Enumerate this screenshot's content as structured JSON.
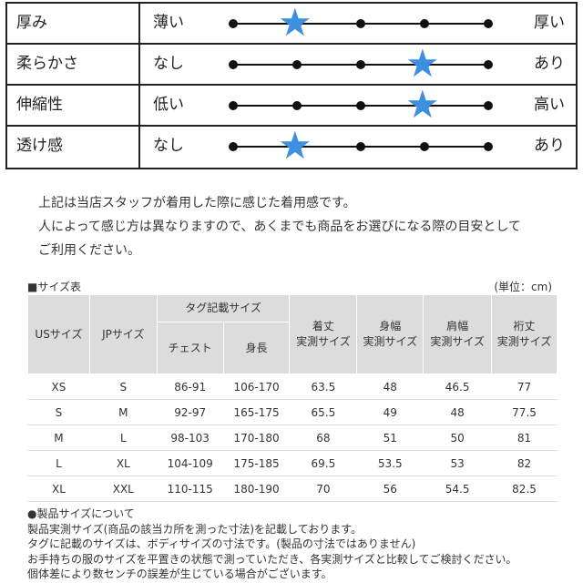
{
  "feel": {
    "rows": [
      {
        "label": "厚み",
        "left": "薄い",
        "right": "厚い",
        "level": 2
      },
      {
        "label": "柔らかさ",
        "left": "なし",
        "right": "あり",
        "level": 4
      },
      {
        "label": "伸縮性",
        "left": "低い",
        "right": "高い",
        "level": 4
      },
      {
        "label": "透け感",
        "left": "なし",
        "right": "あり",
        "level": 2
      }
    ],
    "scale_max": 5,
    "star_color": "#3d8fe0"
  },
  "note": [
    "上記は当店スタッフが着用した際に感じた着用感です。",
    "人によって感じ方は異なりますので、あくまでも商品をお選びになる際の目安として",
    "ご利用ください。"
  ],
  "size": {
    "title": "■サイズ表",
    "unit": "(単位：cm)",
    "headers": {
      "us": "USサイズ",
      "jp": "JPサイズ",
      "tag": "タグ記載サイズ",
      "chest": "チェスト",
      "height": "身長",
      "length": [
        "着丈",
        "実測サイズ"
      ],
      "width": [
        "身幅",
        "実測サイズ"
      ],
      "shoulder": [
        "肩幅",
        "実測サイズ"
      ],
      "sleeve": [
        "裄丈",
        "実測サイズ"
      ]
    },
    "rows": [
      [
        "XS",
        "S",
        "86-91",
        "106-170",
        "63.5",
        "48",
        "46.5",
        "77"
      ],
      [
        "S",
        "M",
        "92-97",
        "165-175",
        "65.5",
        "49",
        "48",
        "77.5"
      ],
      [
        "M",
        "L",
        "98-103",
        "170-180",
        "68",
        "51",
        "50",
        "81"
      ],
      [
        "L",
        "XL",
        "104-109",
        "175-185",
        "69.5",
        "53.5",
        "53",
        "82"
      ],
      [
        "XL",
        "XXL",
        "110-115",
        "180-190",
        "70",
        "56",
        "54.5",
        "82.5"
      ]
    ]
  },
  "footer": [
    "●製品サイズについて",
    "製品実測サイズ(商品の該当カ所を測った寸法)を記載しております。",
    "タグに記載のサイズは、ボディサイズの寸法です。(製品の寸法ではありません)",
    "お手持ちの服のサイズを平置きの状態で測っていただき、各実測サイズと比較してご検討ください。",
    "個体差により数センチの誤差が生じている場合がございます。"
  ]
}
